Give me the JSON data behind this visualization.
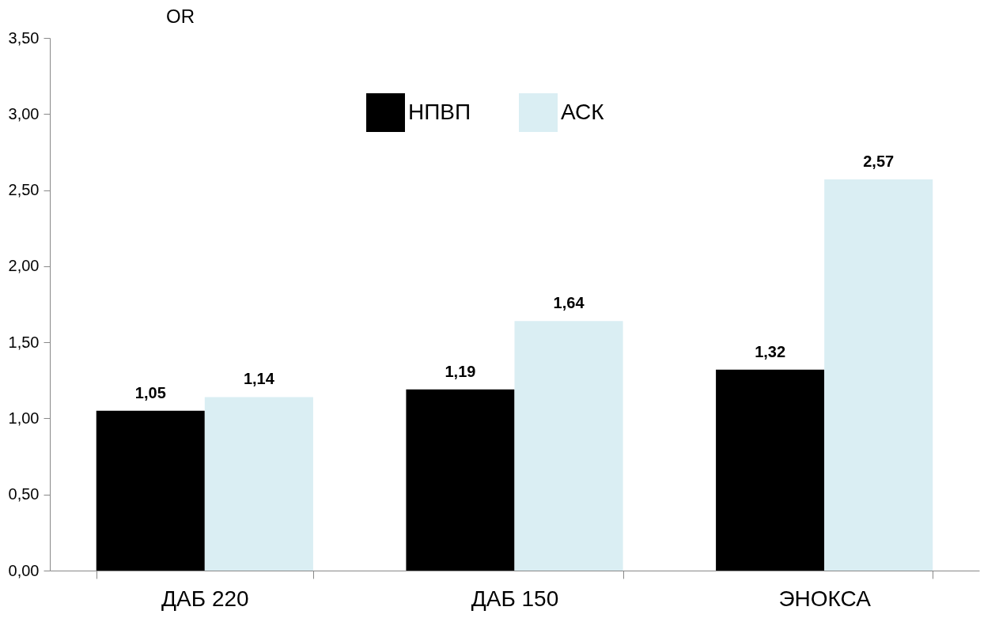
{
  "chart_data": {
    "type": "bar",
    "title": "OR",
    "categories": [
      "ДАБ 220",
      "ДАБ 150",
      "ЭНОКСА"
    ],
    "series": [
      {
        "name": "НПВП",
        "color": "#000000",
        "values": [
          1.05,
          1.19,
          1.32
        ],
        "value_labels": [
          "1,05",
          "1,19",
          "1,32"
        ]
      },
      {
        "name": "АСК",
        "color": "#daeef3",
        "values": [
          1.14,
          1.64,
          2.57
        ],
        "value_labels": [
          "1,14",
          "1,64",
          "2,57"
        ]
      }
    ],
    "ylim": [
      0,
      3.5
    ],
    "yticks": [
      {
        "value": 0,
        "label": "0,00"
      },
      {
        "value": 0.5,
        "label": "0,50"
      },
      {
        "value": 1,
        "label": "1,00"
      },
      {
        "value": 1.5,
        "label": "1,50"
      },
      {
        "value": 2,
        "label": "2,00"
      },
      {
        "value": 2.5,
        "label": "2,50"
      },
      {
        "value": 3,
        "label": "3,00"
      },
      {
        "value": 3.5,
        "label": "3,50"
      }
    ],
    "grid": false,
    "legend": "top"
  }
}
